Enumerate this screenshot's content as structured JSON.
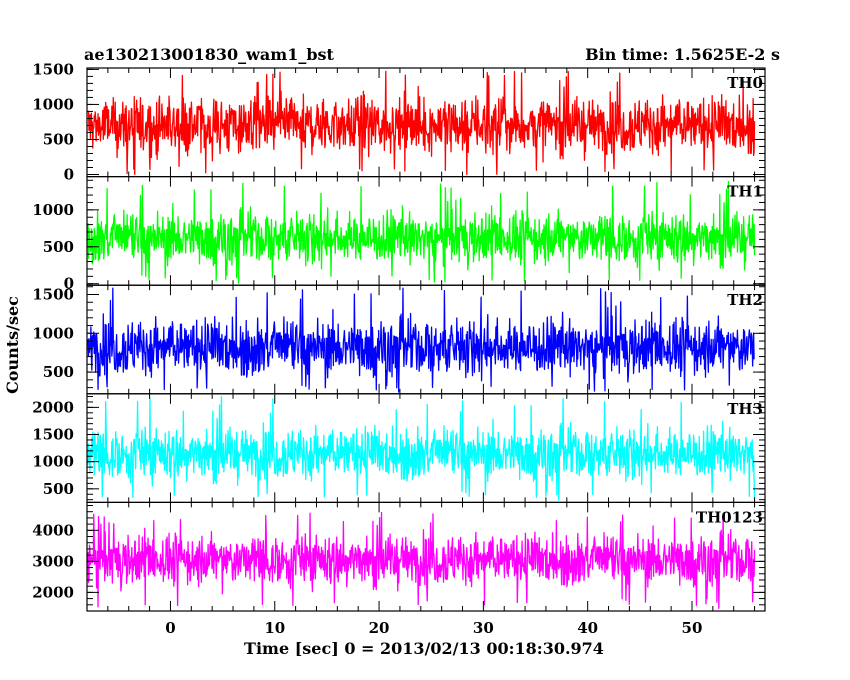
{
  "header": {
    "left_title": "ae130213001830_wam1_bst",
    "right_title": "Bin time: 1.5625E-2 s"
  },
  "chart_data": {
    "type": "line",
    "xlabel": "Time [sec] 0 = 2013/02/13 00:18:30.974",
    "ylabel": "Counts/sec",
    "xlim": [
      -8,
      57
    ],
    "x_ticks": [
      0,
      10,
      20,
      30,
      40,
      50
    ],
    "x_range": [
      -7.9,
      56
    ],
    "bin_time": 0.015625,
    "series": [
      {
        "name": "TH0",
        "color": "#ff0000",
        "ylim": [
          -30,
          1520
        ],
        "y_ticks": [
          0,
          500,
          1000,
          1500
        ],
        "mean": 700,
        "low_envelope": 110,
        "high_envelope": 1300,
        "peak": 1480
      },
      {
        "name": "TH1",
        "color": "#00ff00",
        "ylim": [
          -20,
          1450
        ],
        "y_ticks": [
          0,
          500,
          1000
        ],
        "mean": 620,
        "low_envelope": 120,
        "high_envelope": 1150,
        "peak": 1400
      },
      {
        "name": "TH2",
        "color": "#0000ff",
        "ylim": [
          220,
          1620
        ],
        "y_ticks": [
          500,
          1000,
          1500
        ],
        "mean": 820,
        "low_envelope": 330,
        "high_envelope": 1400,
        "peak": 1620
      },
      {
        "name": "TH3",
        "color": "#00ffff",
        "ylim": [
          250,
          2250
        ],
        "y_ticks": [
          500,
          1000,
          1500,
          2000
        ],
        "mean": 1150,
        "low_envelope": 450,
        "high_envelope": 1850,
        "peak": 2220
      },
      {
        "name": "TH0123",
        "color": "#ff00ff",
        "ylim": [
          1400,
          4900
        ],
        "y_ticks": [
          2000,
          3000,
          4000
        ],
        "mean": 3050,
        "low_envelope": 1800,
        "high_envelope": 4200,
        "peak": 4600
      }
    ]
  }
}
